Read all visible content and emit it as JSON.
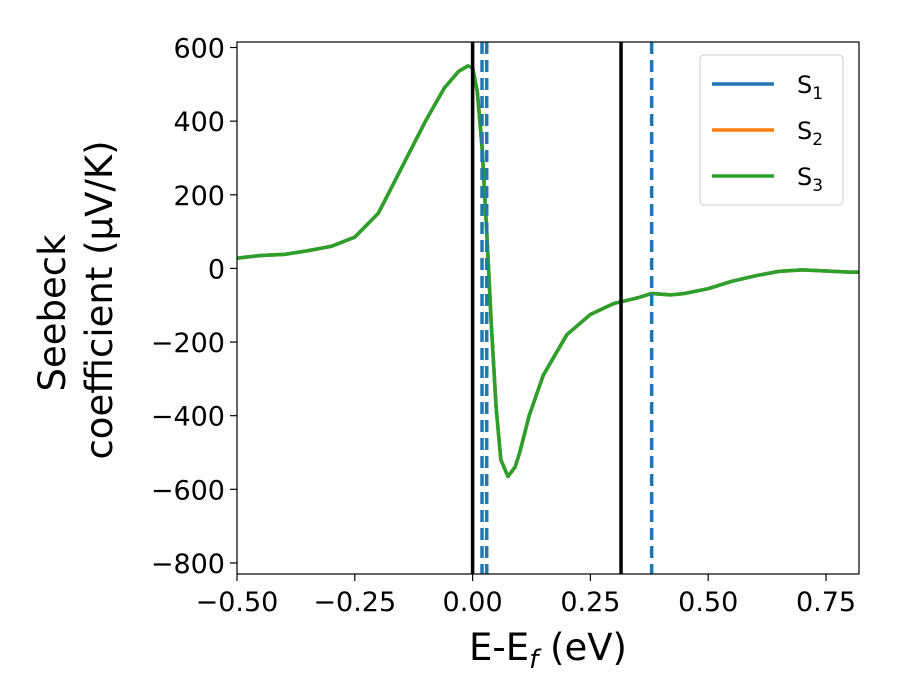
{
  "chart_data": {
    "type": "line",
    "xlabel": "E-E",
    "xlabel_sub": "f",
    "xlabel_unit": " (eV)",
    "ylabel_line1": "Seebeck",
    "ylabel_line2": "coefficient  (μV/K)",
    "xlim": [
      -0.5,
      0.82
    ],
    "ylim": [
      -830,
      615
    ],
    "x_ticks": [
      -0.5,
      -0.25,
      0.0,
      0.25,
      0.5,
      0.75
    ],
    "x_tick_labels": [
      "−0.50",
      "−0.25",
      "0.00",
      "0.25",
      "0.50",
      "0.75"
    ],
    "y_ticks": [
      -800,
      -600,
      -400,
      -200,
      0,
      200,
      400,
      600
    ],
    "y_tick_labels": [
      "−800",
      "−600",
      "−400",
      "−200",
      "0",
      "200",
      "400",
      "600"
    ],
    "grid": false,
    "legend_position": "top-right",
    "series": [
      {
        "name": "S",
        "sub": "1",
        "color": "#1f77b4",
        "x": [
          -0.5,
          -0.45,
          -0.4,
          -0.35,
          -0.3,
          -0.25,
          -0.2,
          -0.15,
          -0.1,
          -0.06,
          -0.03,
          -0.01,
          0.0,
          0.01,
          0.02,
          0.03,
          0.04,
          0.05,
          0.06,
          0.075,
          0.09,
          0.1,
          0.12,
          0.15,
          0.2,
          0.25,
          0.3,
          0.35,
          0.38,
          0.42,
          0.45,
          0.5,
          0.55,
          0.6,
          0.65,
          0.7,
          0.75,
          0.8,
          0.82
        ],
        "y": [
          28,
          35,
          38,
          48,
          60,
          85,
          150,
          275,
          400,
          490,
          535,
          550,
          545,
          480,
          330,
          100,
          -160,
          -380,
          -520,
          -565,
          -540,
          -500,
          -400,
          -290,
          -180,
          -125,
          -95,
          -80,
          -68,
          -72,
          -68,
          -55,
          -35,
          -20,
          -8,
          -4,
          -7,
          -10,
          -10
        ]
      },
      {
        "name": "S",
        "sub": "2",
        "color": "#ff7f0e",
        "x": [
          -0.5,
          -0.45,
          -0.4,
          -0.35,
          -0.3,
          -0.25,
          -0.2,
          -0.15,
          -0.1,
          -0.06,
          -0.03,
          -0.01,
          0.0,
          0.01,
          0.02,
          0.03,
          0.04,
          0.05,
          0.06,
          0.075,
          0.09,
          0.1,
          0.12,
          0.15,
          0.2,
          0.25,
          0.3,
          0.35,
          0.38,
          0.42,
          0.45,
          0.5,
          0.55,
          0.6,
          0.65,
          0.7,
          0.75,
          0.8,
          0.82
        ],
        "y": [
          28,
          35,
          38,
          48,
          60,
          85,
          150,
          275,
          400,
          490,
          535,
          550,
          545,
          480,
          330,
          100,
          -160,
          -380,
          -520,
          -565,
          -540,
          -500,
          -400,
          -290,
          -180,
          -125,
          -95,
          -80,
          -68,
          -72,
          -68,
          -55,
          -35,
          -20,
          -8,
          -4,
          -7,
          -10,
          -10
        ]
      },
      {
        "name": "S",
        "sub": "3",
        "color": "#2ca02c",
        "x": [
          -0.5,
          -0.45,
          -0.4,
          -0.35,
          -0.3,
          -0.25,
          -0.2,
          -0.15,
          -0.1,
          -0.06,
          -0.03,
          -0.01,
          0.0,
          0.01,
          0.02,
          0.03,
          0.04,
          0.05,
          0.06,
          0.075,
          0.09,
          0.1,
          0.12,
          0.15,
          0.2,
          0.25,
          0.3,
          0.35,
          0.38,
          0.42,
          0.45,
          0.5,
          0.55,
          0.6,
          0.65,
          0.7,
          0.75,
          0.8,
          0.82
        ],
        "y": [
          28,
          35,
          38,
          48,
          60,
          85,
          150,
          275,
          400,
          490,
          535,
          550,
          545,
          480,
          330,
          100,
          -160,
          -380,
          -520,
          -565,
          -540,
          -500,
          -400,
          -290,
          -180,
          -125,
          -95,
          -80,
          -68,
          -72,
          -68,
          -55,
          -35,
          -20,
          -8,
          -4,
          -7,
          -10,
          -10
        ]
      }
    ],
    "vertical_lines": [
      {
        "x": 0.0,
        "style": "solid",
        "color": "#000000"
      },
      {
        "x": 0.315,
        "style": "solid",
        "color": "#000000"
      },
      {
        "x": 0.02,
        "style": "dashed",
        "color": "#1f77b4"
      },
      {
        "x": 0.03,
        "style": "dashed",
        "color": "#1f77b4"
      },
      {
        "x": 0.38,
        "style": "dashed",
        "color": "#1f77b4"
      }
    ]
  }
}
